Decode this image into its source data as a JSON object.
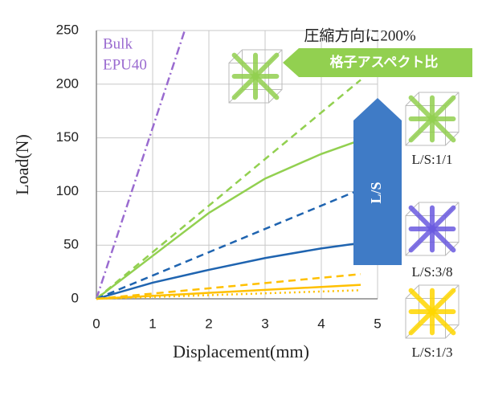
{
  "chart_data": {
    "type": "line",
    "y_label": "Load(N)",
    "x_label": "Displacement(mm)",
    "xlim": [
      0,
      5
    ],
    "ylim": [
      0,
      250
    ],
    "xticks": [
      0,
      1,
      2,
      3,
      4,
      5
    ],
    "yticks": [
      0,
      50,
      100,
      150,
      200,
      250
    ],
    "grid": true,
    "series": [
      {
        "color": "#9a6bd0",
        "dash": "dashdot",
        "x": [
          0,
          1.57
        ],
        "values": [
          0,
          250
        ]
      },
      {
        "color": "#92d050",
        "dash": "dash",
        "x": [
          0,
          4.7
        ],
        "values": [
          0,
          204
        ]
      },
      {
        "color": "#92d050",
        "dash": "solid",
        "x": [
          0,
          1,
          2,
          3,
          4,
          4.7
        ],
        "values": [
          0,
          40,
          80,
          112,
          135,
          148
        ]
      },
      {
        "color": "#1f64b0",
        "dash": "dash",
        "x": [
          0,
          4.7
        ],
        "values": [
          0,
          102
        ]
      },
      {
        "color": "#1f64b0",
        "dash": "solid",
        "x": [
          0,
          1,
          2,
          3,
          4,
          4.7
        ],
        "values": [
          0,
          15,
          27,
          38,
          47,
          52
        ]
      },
      {
        "color": "#ffc000",
        "dash": "dash",
        "x": [
          0,
          4.7
        ],
        "values": [
          0,
          23
        ]
      },
      {
        "color": "#ffc000",
        "dash": "solid",
        "x": [
          0,
          4.7
        ],
        "values": [
          0,
          13
        ]
      },
      {
        "color": "#ffc000",
        "dash": "dot",
        "x": [
          0,
          4.7
        ],
        "values": [
          0,
          8
        ]
      }
    ],
    "legend_text": [
      "Bulk",
      "EPU40"
    ],
    "annotations": [
      "圧縮方向に200%",
      "格子アスペクト比",
      "L/S",
      "L/S:1/1",
      "L/S:3/8",
      "L/S:1/3"
    ]
  }
}
